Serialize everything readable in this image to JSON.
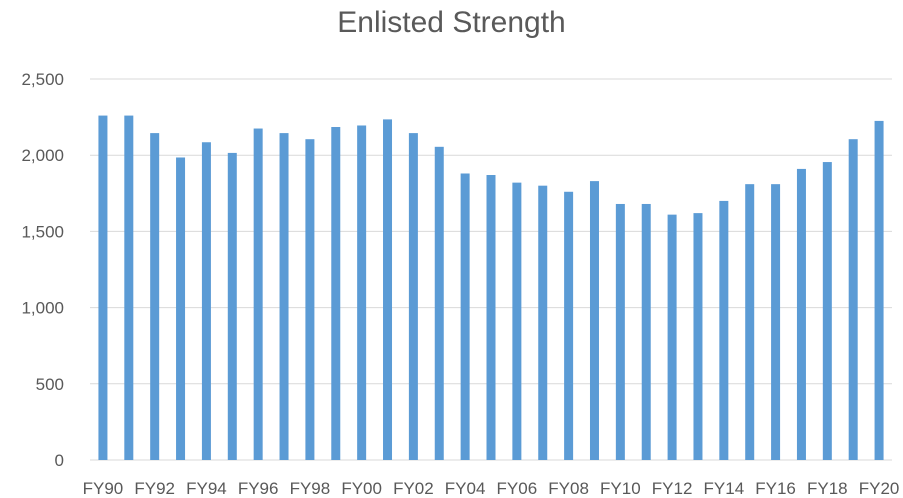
{
  "chart_data": {
    "type": "bar",
    "title": "Enlisted Strength",
    "xlabel": "",
    "ylabel": "",
    "ylim": [
      0,
      2500
    ],
    "yticks": [
      0,
      500,
      1000,
      1500,
      2000,
      2500
    ],
    "ytick_labels": [
      "0",
      "500",
      "1,000",
      "1,500",
      "2,000",
      "2,500"
    ],
    "categories": [
      "FY90",
      "FY91",
      "FY92",
      "FY93",
      "FY94",
      "FY95",
      "FY96",
      "FY97",
      "FY98",
      "FY99",
      "FY00",
      "FY01",
      "FY02",
      "FY03",
      "FY04",
      "FY05",
      "FY06",
      "FY07",
      "FY08",
      "FY09",
      "FY10",
      "FY11",
      "FY12",
      "FY13",
      "FY14",
      "FY15",
      "FY16",
      "FY17",
      "FY18",
      "FY19",
      "FY20"
    ],
    "xtick_labels": [
      "FY90",
      "FY92",
      "FY94",
      "FY96",
      "FY98",
      "FY00",
      "FY02",
      "FY04",
      "FY06",
      "FY08",
      "FY10",
      "FY12",
      "FY14",
      "FY16",
      "FY18",
      "FY20"
    ],
    "values": [
      2260,
      2260,
      2145,
      1985,
      2085,
      2015,
      2175,
      2145,
      2105,
      2185,
      2195,
      2235,
      2145,
      2055,
      1880,
      1870,
      1820,
      1800,
      1760,
      1830,
      1680,
      1680,
      1610,
      1620,
      1700,
      1810,
      1810,
      1910,
      1955,
      2105,
      2225
    ],
    "bar_color": "#5B9BD5",
    "grid": true,
    "legend": "none"
  }
}
